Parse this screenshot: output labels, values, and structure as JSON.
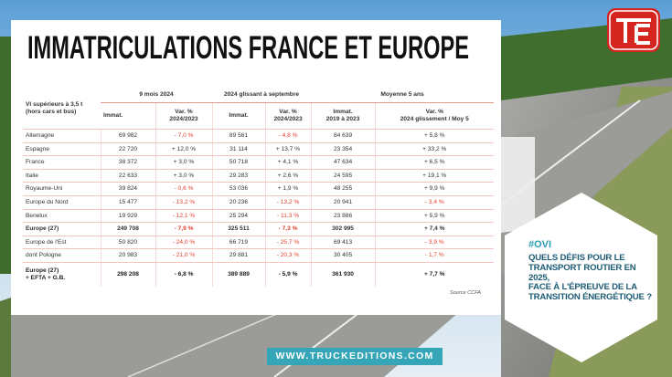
{
  "title": "IMMATRICULATIONS FRANCE ET EUROPE",
  "table": {
    "row_header": "Vl supérieurs à 3,5 t\n(hors cars et bus)",
    "group_headers": [
      "9 mois 2024",
      "2024 glissant à septembre",
      "Moyenne 5 ans"
    ],
    "columns": [
      "Immat.",
      "Var. %\n2024/2023",
      "Immat.",
      "Var. %\n2024/2023",
      "Immat.\n2019 à 2023",
      "Var. %\n2024 glissement / Moy 5"
    ],
    "rows": [
      [
        "Allemagne",
        "69 982",
        "- 7,0 %",
        "89 561",
        "- 4,8 %",
        "84 639",
        "+ 5,8 %"
      ],
      [
        "Espagne",
        "22 720",
        "+ 12,0 %",
        "31 114",
        "+ 13,7 %",
        "23 354",
        "+ 33,2 %"
      ],
      [
        "France",
        "38 372",
        "+ 3,0 %",
        "50 718",
        "+ 4,1 %",
        "47 634",
        "+ 6,5 %"
      ],
      [
        "Italie",
        "22 633",
        "+ 3,0 %",
        "29 283",
        "+ 2,6 %",
        "24 595",
        "+ 19,1 %"
      ],
      [
        "Royaume-Uni",
        "39 824",
        "- 0,6 %",
        "53 036",
        "+ 1,9 %",
        "48 255",
        "+ 9,9 %"
      ],
      [
        "Europe du Nord",
        "15 477",
        "- 13,2 %",
        "20 236",
        "- 13,2 %",
        "20 941",
        "- 3,4 %"
      ],
      [
        "Benelux",
        "19 929",
        "- 12,1 %",
        "25 294",
        "- 11,3 %",
        "23 886",
        "+ 5,9 %"
      ],
      [
        "Europe (27)",
        "249 708",
        "- 7,9 %",
        "325 511",
        "- 7,3 %",
        "302 995",
        "+ 7,4 %"
      ],
      [
        "Europe de l'Est",
        "50 820",
        "- 24,0 %",
        "66 719",
        "- 25,7 %",
        "69 413",
        "- 3,9 %"
      ],
      [
        "dont Pologne",
        "20 983",
        "- 21,0 %",
        "29 881",
        "- 20,3 %",
        "30 405",
        "- 1,7 %"
      ],
      [
        "Europe (27)\n+ EFTA + G.B.",
        "298 208",
        "- 6,8 %",
        "389 889",
        "- 5,9 %",
        "361 930",
        "+ 7,7 %"
      ]
    ],
    "source": "Source CCFA"
  },
  "tag": "#OVI",
  "headline": "QUELS DÉFIS POUR LE\nTRANSPORT ROUTIER EN 2025,\nFACE À L'ÉPREUVE DE LA\nTRANSITION ÉNERGÉTIQUE ?",
  "website": "WWW.TRUCKEDITIONS.COM"
}
